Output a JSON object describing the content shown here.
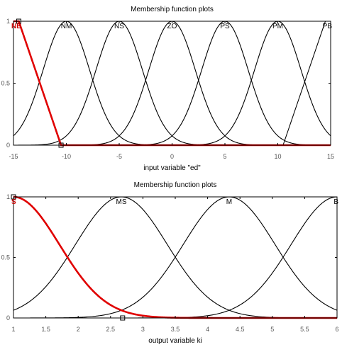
{
  "chart_data": [
    {
      "type": "line",
      "title": "Membership function plots",
      "xlabel": "input variable \"ed\"",
      "xlim": [
        -15,
        15
      ],
      "ylim": [
        0,
        1
      ],
      "xticks": [
        -15,
        -10,
        -5,
        0,
        5,
        10,
        15
      ],
      "yticks": [
        0,
        0.5,
        1
      ],
      "ytick_labels": [
        "0",
        "0.5",
        "1"
      ],
      "selected_color": "#e00000",
      "series": [
        {
          "name": "NB",
          "shape": "zmf",
          "params": [
            -14.5,
            -10.5
          ],
          "selected": true
        },
        {
          "name": "NM",
          "shape": "gauss",
          "params": [
            2.2,
            -10
          ]
        },
        {
          "name": "NS",
          "shape": "gauss",
          "params": [
            2.2,
            -5
          ]
        },
        {
          "name": "ZO",
          "shape": "gauss",
          "params": [
            2.2,
            0
          ]
        },
        {
          "name": "PS",
          "shape": "gauss",
          "params": [
            2.2,
            5
          ]
        },
        {
          "name": "PM",
          "shape": "gauss",
          "params": [
            2.2,
            10
          ]
        },
        {
          "name": "PB",
          "shape": "smf",
          "params": [
            10.5,
            14.5
          ]
        }
      ]
    },
    {
      "type": "line",
      "title": "Membership function plots",
      "xlabel": "output variable  ki",
      "xlim": [
        1,
        6
      ],
      "ylim": [
        0,
        1
      ],
      "xticks": [
        1,
        1.5,
        2,
        2.5,
        3,
        3.5,
        4,
        4.5,
        5,
        5.5,
        6
      ],
      "yticks": [
        0,
        0.5,
        1
      ],
      "ytick_labels": [
        "0",
        "0.5",
        "1"
      ],
      "selected_color": "#e00000",
      "series": [
        {
          "name": "S",
          "shape": "gauss",
          "params": [
            0.71,
            1
          ],
          "selected": true
        },
        {
          "name": "MS",
          "shape": "gauss",
          "params": [
            0.71,
            2.667
          ]
        },
        {
          "name": "M",
          "shape": "gauss",
          "params": [
            0.71,
            4.333
          ]
        },
        {
          "name": "B",
          "shape": "gauss",
          "params": [
            0.71,
            6
          ]
        }
      ]
    }
  ]
}
